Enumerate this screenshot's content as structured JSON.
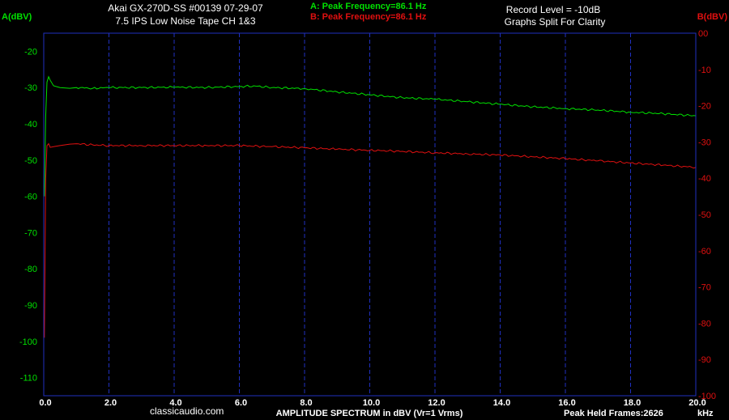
{
  "header": {
    "title_line1": "Akai GX-270D-SS #00139  07-29-07",
    "title_line2": "7.5 IPS  Low Noise Tape  CH 1&3",
    "peak_a": "A: Peak Frequency=86.1 Hz",
    "peak_b": "B: Peak Frequency=86.1 Hz",
    "record_level": "Record Level = -10dB",
    "note": "Graphs Split For Clarity"
  },
  "footer": {
    "site": "classicaudio.com",
    "xlabel": "AMPLITUDE SPECTRUM in dBV (Vr=1 Vrms)",
    "peak_frames": "Peak Held Frames:2626",
    "x_unit": "kHz"
  },
  "colors": {
    "background": "#000000",
    "grid": "#2030c0",
    "frame": "#2030c0",
    "channel_a": "#00e000",
    "channel_b": "#e01010",
    "text": "#ffffff"
  },
  "chart_data": {
    "type": "line",
    "title": "Akai GX-270D-SS #00139  07-29-07",
    "xlabel": "AMPLITUDE SPECTRUM in dBV (Vr=1 Vrms)",
    "x_unit": "kHz",
    "xlim": [
      0,
      20
    ],
    "x_ticks": [
      "0.0",
      "2.0",
      "4.0",
      "6.0",
      "8.0",
      "10.0",
      "12.0",
      "14.0",
      "16.0",
      "18.0",
      "20.0"
    ],
    "y_left": {
      "label": "A(dBV)",
      "ylim": [
        -115,
        -15
      ],
      "ticks": [
        "-20",
        "-30",
        "-40",
        "-50",
        "-60",
        "-70",
        "-80",
        "-90",
        "-100",
        "-110"
      ]
    },
    "y_right": {
      "label": "B(dBV)",
      "ylim": [
        -100,
        0
      ],
      "ticks": [
        "00",
        "-10",
        "-20",
        "-30",
        "-40",
        "-50",
        "-60",
        "-70",
        "-80",
        "-90",
        "-100"
      ]
    },
    "grid": "vertical",
    "series": [
      {
        "name": "A",
        "axis": "left",
        "x": [
          0.02,
          0.06,
          0.1,
          0.15,
          0.2,
          0.3,
          0.5,
          0.8,
          1.0,
          1.5,
          2.0,
          3.0,
          4.0,
          5.0,
          6.0,
          6.5,
          7.0,
          8.0,
          9.0,
          10.0,
          11.0,
          12.0,
          13.0,
          14.0,
          15.0,
          16.0,
          17.0,
          18.0,
          19.0,
          20.0
        ],
        "values": [
          -60,
          -38,
          -28.5,
          -27,
          -28,
          -29.5,
          -30,
          -30.2,
          -30,
          -30.2,
          -30,
          -30,
          -29.9,
          -30,
          -29.7,
          -29.6,
          -30,
          -30.3,
          -31.2,
          -32,
          -32.8,
          -33.2,
          -33.9,
          -34.6,
          -35.3,
          -35.8,
          -36.2,
          -36.8,
          -37.2,
          -37.8
        ]
      },
      {
        "name": "B",
        "axis": "right",
        "x": [
          0.02,
          0.06,
          0.1,
          0.15,
          0.2,
          0.3,
          0.5,
          0.8,
          1.0,
          1.5,
          2.0,
          3.0,
          4.0,
          5.0,
          6.0,
          7.0,
          8.0,
          9.0,
          10.0,
          11.0,
          12.0,
          13.0,
          14.0,
          15.0,
          16.0,
          17.0,
          18.0,
          19.0,
          20.0
        ],
        "values": [
          -84,
          -40,
          -31,
          -30.5,
          -31.5,
          -31.3,
          -31,
          -30.6,
          -30.5,
          -30.8,
          -31,
          -31,
          -31,
          -31,
          -31,
          -31.3,
          -31.6,
          -32,
          -32.3,
          -32.6,
          -33,
          -33.3,
          -33.6,
          -34.1,
          -34.6,
          -35.2,
          -35.8,
          -36.4,
          -37
        ]
      }
    ]
  }
}
